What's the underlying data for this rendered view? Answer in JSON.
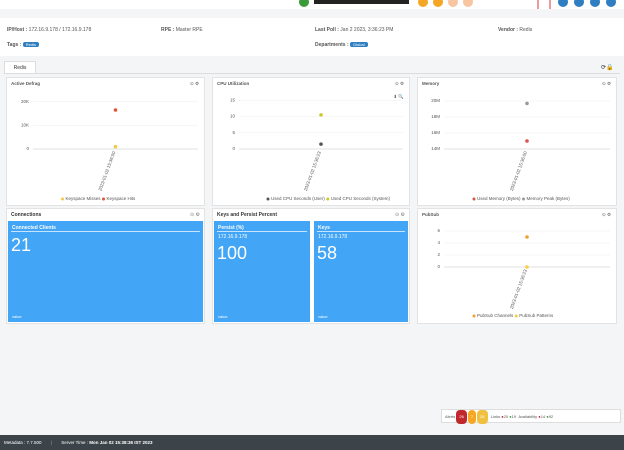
{
  "info": {
    "host_label": "IP/Host :",
    "host": "172.16.9.178 / 172.16.9.178",
    "rpe_label": "RPE :",
    "rpe": "Master RPE",
    "poll_label": "Last Poll :",
    "poll": "Jan 2 2023, 3:36:23 PM",
    "vendor_label": "Vendor :",
    "vendor": "Redis",
    "tags_label": "Tags :",
    "tag": "Redis",
    "dept_label": "Departments :",
    "dept": "Global"
  },
  "tabs": [
    "Redis"
  ],
  "tiles": {
    "connections": {
      "title": "Connections",
      "tile": {
        "name": "Connected Clients",
        "value": "21",
        "foot": "value"
      }
    },
    "keys": {
      "title": "Keys and Persist Percent",
      "tiles": [
        {
          "name": "Persist (%)",
          "host": "172.16.9.178",
          "value": "100",
          "foot": "value"
        },
        {
          "name": "Keys",
          "host": "172.16.9.178",
          "value": "58",
          "foot": "value"
        }
      ]
    }
  },
  "status": {
    "alerts_label": "Alerts",
    "alerts": [
      "26",
      "7",
      "26"
    ],
    "links_label": "Links",
    "links": [
      "20",
      "19"
    ],
    "availability_label": "Availability",
    "availability": [
      "14",
      "92"
    ]
  },
  "footer": {
    "metadata": "Metadata : 7.7.500",
    "server_time_label": "Server Time :",
    "server_time": "Mon Jan 02 15:38:36 IST 2023"
  },
  "chart_data": [
    {
      "type": "scatter",
      "title": "Active Defrag",
      "categories": [
        "2023-01-02 15:36:00"
      ],
      "series": [
        {
          "name": "Keyspace Misses",
          "color": "#f2c94c",
          "values": [
            1000
          ]
        },
        {
          "name": "Keyspace Hits",
          "color": "#e0533a",
          "values": [
            16500
          ]
        }
      ],
      "ylim": [
        0,
        22000
      ],
      "yticks": [
        0,
        {
          "value": 10000,
          "label": "10K"
        },
        {
          "value": 20000,
          "label": "20K"
        }
      ],
      "grid": true
    },
    {
      "type": "scatter",
      "title": "CPU Utilization",
      "categories": [
        "2023-01-02 15:36:23"
      ],
      "series": [
        {
          "name": "Used CPU Seconds (User)",
          "color": "#555555",
          "values": [
            1.5
          ]
        },
        {
          "name": "Used CPU Seconds (System)",
          "color": "#c9c92a",
          "values": [
            10.5
          ]
        }
      ],
      "ylim": [
        0,
        16
      ],
      "yticks": [
        0,
        5,
        10,
        15
      ],
      "grid": true
    },
    {
      "type": "scatter",
      "title": "Memory",
      "categories": [
        "2023-01-02 15:36:00"
      ],
      "series": [
        {
          "name": "Used Memory (Bytes)",
          "color": "#d9534f",
          "values": [
            15000000
          ]
        },
        {
          "name": "Memory Peak (Bytes)",
          "color": "#999999",
          "values": [
            19700000
          ]
        }
      ],
      "ylim": [
        14000000,
        20500000
      ],
      "yticks": [
        {
          "value": 14000000,
          "label": "14M"
        },
        {
          "value": 16000000,
          "label": "16M"
        },
        {
          "value": 18000000,
          "label": "18M"
        },
        {
          "value": 20000000,
          "label": "20M"
        }
      ],
      "grid": true
    },
    {
      "type": "scatter",
      "title": "PubSub",
      "categories": [
        "2023-01-02 15:36:23"
      ],
      "series": [
        {
          "name": "PubSub Channels",
          "color": "#f0a030",
          "values": [
            5
          ]
        },
        {
          "name": "PubSub Patterns",
          "color": "#f5d142",
          "values": [
            0
          ]
        }
      ],
      "ylim": [
        0,
        6.5
      ],
      "yticks": [
        0,
        2,
        4,
        6
      ],
      "grid": true
    }
  ]
}
